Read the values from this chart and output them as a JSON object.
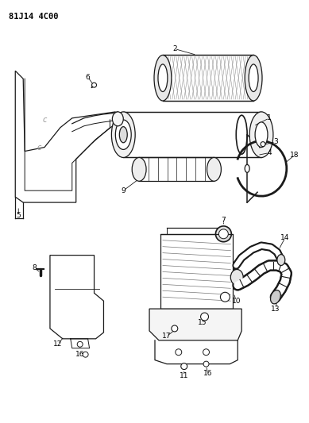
{
  "title": "81J14 4C00",
  "bg_color": "#ffffff",
  "line_color": "#1a1a1a",
  "fig_width": 3.89,
  "fig_height": 5.33,
  "dpi": 100
}
